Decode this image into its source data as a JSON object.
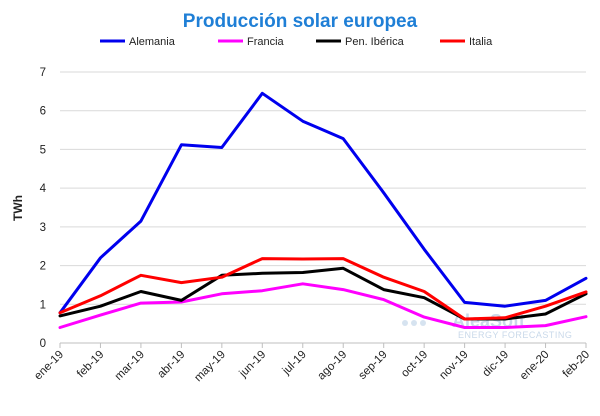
{
  "chart_data": {
    "type": "line",
    "title": "Producción solar europea",
    "ylabel": "TWh",
    "xlabel": "",
    "ylim": [
      0,
      7
    ],
    "yticks": [
      "0",
      "1",
      "2",
      "3",
      "4",
      "5",
      "6",
      "7"
    ],
    "grid": true,
    "legend_position": "top",
    "categories": [
      "ene-19",
      "feb-19",
      "mar-19",
      "abr-19",
      "may-19",
      "jun-19",
      "jul-19",
      "ago-19",
      "sep-19",
      "oct-19",
      "nov-19",
      "dic-19",
      "ene-20",
      "feb-20"
    ],
    "series": [
      {
        "name": "Alemania",
        "color": "#0000ee",
        "values": [
          0.78,
          2.2,
          3.15,
          5.12,
          5.05,
          6.45,
          5.73,
          5.28,
          3.88,
          2.42,
          1.05,
          0.95,
          1.1,
          1.67
        ]
      },
      {
        "name": "Francia",
        "color": "#ff00ff",
        "values": [
          0.4,
          0.72,
          1.03,
          1.06,
          1.27,
          1.35,
          1.53,
          1.38,
          1.12,
          0.67,
          0.4,
          0.4,
          0.45,
          0.68
        ]
      },
      {
        "name": "Pen. Ibérica",
        "color": "#000000",
        "values": [
          0.7,
          0.95,
          1.33,
          1.1,
          1.75,
          1.8,
          1.82,
          1.93,
          1.38,
          1.17,
          0.62,
          0.62,
          0.75,
          1.27
        ]
      },
      {
        "name": "Italia",
        "color": "#ff0000",
        "values": [
          0.78,
          1.22,
          1.75,
          1.56,
          1.7,
          2.18,
          2.17,
          2.18,
          1.7,
          1.33,
          0.62,
          0.65,
          0.95,
          1.32
        ]
      }
    ]
  },
  "watermark": {
    "brand": "AleaSoft",
    "tagline": "ENERGY FORECASTING"
  }
}
